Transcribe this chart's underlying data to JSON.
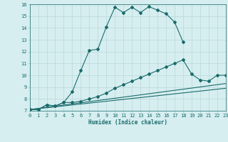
{
  "xlabel": "Humidex (Indice chaleur)",
  "bg_color": "#d6eef0",
  "grid_color": "#b8d8da",
  "line_color": "#1a6b6b",
  "xlim": [
    0,
    23
  ],
  "ylim": [
    7,
    16
  ],
  "x_ticks": [
    0,
    1,
    2,
    3,
    4,
    5,
    6,
    7,
    8,
    9,
    10,
    11,
    12,
    13,
    14,
    15,
    16,
    17,
    18,
    19,
    20,
    21,
    22,
    23
  ],
  "y_ticks": [
    7,
    8,
    9,
    10,
    11,
    12,
    13,
    14,
    15,
    16
  ],
  "line1_x": [
    0,
    1,
    2,
    3,
    4,
    5,
    6,
    7,
    8,
    9,
    10,
    11,
    12,
    13,
    14,
    15,
    16,
    17,
    18
  ],
  "line1_y": [
    7.1,
    7.1,
    7.5,
    7.4,
    7.7,
    8.6,
    10.4,
    12.1,
    12.2,
    14.1,
    15.75,
    15.3,
    15.75,
    15.3,
    15.8,
    15.5,
    15.2,
    14.5,
    12.8
  ],
  "line2_x": [
    0,
    1,
    2,
    3,
    4,
    5,
    6,
    7,
    8,
    9,
    10,
    11,
    12,
    13,
    14,
    15,
    16,
    17,
    18,
    19,
    20,
    21,
    22,
    23
  ],
  "line2_y": [
    7.1,
    7.1,
    7.5,
    7.4,
    7.7,
    7.7,
    7.8,
    8.0,
    8.2,
    8.5,
    8.9,
    9.2,
    9.5,
    9.8,
    10.1,
    10.4,
    10.7,
    11.0,
    11.3,
    10.1,
    9.6,
    9.5,
    10.0,
    10.0
  ],
  "line3_x": [
    0,
    23
  ],
  "line3_y": [
    7.1,
    9.3
  ],
  "line4_x": [
    0,
    23
  ],
  "line4_y": [
    7.1,
    8.9
  ]
}
